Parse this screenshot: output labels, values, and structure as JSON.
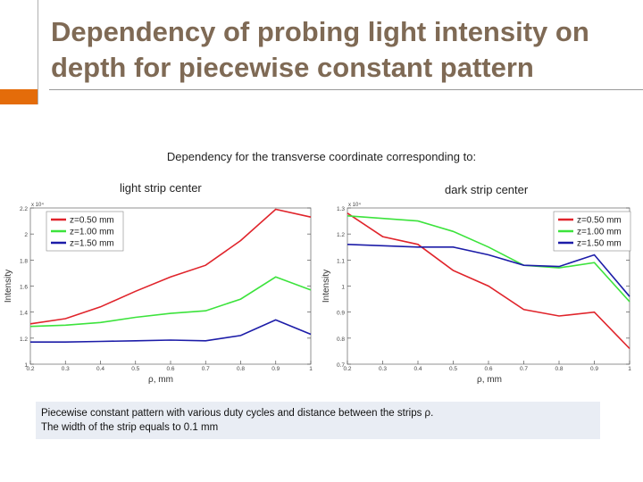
{
  "slide": {
    "title": "Dependency of probing light intensity on depth for piecewise constant pattern",
    "subtitle": "Dependency for the transverse coordinate corresponding to:",
    "caption_line1": "Piecewise constant pattern with various duty cycles and distance between the strips ρ.",
    "caption_line2": "The width of the strip equals to 0.1 mm",
    "accent_color": "#e46c0a",
    "title_color": "#7f6a55"
  },
  "chart_data": [
    {
      "type": "line",
      "panel_label": "light strip center",
      "xlabel": "ρ, mm",
      "ylabel": "Intensity",
      "exponent_label": "x 10⁴",
      "x": [
        0.2,
        0.3,
        0.4,
        0.5,
        0.6,
        0.7,
        0.8,
        0.9,
        1.0
      ],
      "xlim": [
        0.2,
        1.0
      ],
      "ylim": [
        1.0,
        2.2
      ],
      "xticks": [
        "0.2",
        "0.3",
        "0.4",
        "0.5",
        "0.6",
        "0.7",
        "0.8",
        "0.9",
        "1"
      ],
      "yticks": [
        {
          "v": 1.0,
          "t": "1"
        },
        {
          "v": 1.2,
          "t": "1.2"
        },
        {
          "v": 1.4,
          "t": "1.4"
        },
        {
          "v": 1.6,
          "t": "1.6"
        },
        {
          "v": 1.8,
          "t": "1.8"
        },
        {
          "v": 2.0,
          "t": "2"
        },
        {
          "v": 2.2,
          "t": "2.2"
        }
      ],
      "legend_position": "top-left",
      "series": [
        {
          "name": "z=0.50 mm",
          "color": "#e0242b",
          "values": [
            1.31,
            1.35,
            1.44,
            1.56,
            1.67,
            1.76,
            1.95,
            2.19,
            2.13
          ]
        },
        {
          "name": "z=1.00 mm",
          "color": "#3ce33c",
          "values": [
            1.29,
            1.3,
            1.32,
            1.36,
            1.39,
            1.41,
            1.5,
            1.67,
            1.57
          ]
        },
        {
          "name": "z=1.50 mm",
          "color": "#1c1ca8",
          "values": [
            1.17,
            1.17,
            1.175,
            1.18,
            1.185,
            1.18,
            1.22,
            1.34,
            1.23
          ]
        }
      ]
    },
    {
      "type": "line",
      "panel_label": "dark strip center",
      "xlabel": "ρ, mm",
      "ylabel": "Intensity",
      "exponent_label": "x 10⁴",
      "x": [
        0.2,
        0.3,
        0.4,
        0.5,
        0.6,
        0.7,
        0.8,
        0.9,
        1.0
      ],
      "xlim": [
        0.2,
        1.0
      ],
      "ylim": [
        0.7,
        1.3
      ],
      "xticks": [
        "0.2",
        "0.3",
        "0.4",
        "0.5",
        "0.6",
        "0.7",
        "0.8",
        "0.9",
        "1"
      ],
      "yticks": [
        {
          "v": 0.7,
          "t": "0.7"
        },
        {
          "v": 0.8,
          "t": "0.8"
        },
        {
          "v": 0.9,
          "t": "0.9"
        },
        {
          "v": 1.0,
          "t": "1"
        },
        {
          "v": 1.1,
          "t": "1.1"
        },
        {
          "v": 1.2,
          "t": "1.2"
        },
        {
          "v": 1.3,
          "t": "1.3"
        }
      ],
      "legend_position": "top-right",
      "series": [
        {
          "name": "z=0.50 mm",
          "color": "#e0242b",
          "values": [
            1.28,
            1.19,
            1.16,
            1.06,
            1.0,
            0.91,
            0.885,
            0.9,
            0.76
          ]
        },
        {
          "name": "z=1.00 mm",
          "color": "#3ce33c",
          "values": [
            1.27,
            1.26,
            1.25,
            1.21,
            1.15,
            1.08,
            1.07,
            1.09,
            0.94
          ]
        },
        {
          "name": "z=1.50 mm",
          "color": "#1c1ca8",
          "values": [
            1.16,
            1.155,
            1.15,
            1.15,
            1.12,
            1.08,
            1.075,
            1.12,
            0.96
          ]
        }
      ]
    }
  ]
}
